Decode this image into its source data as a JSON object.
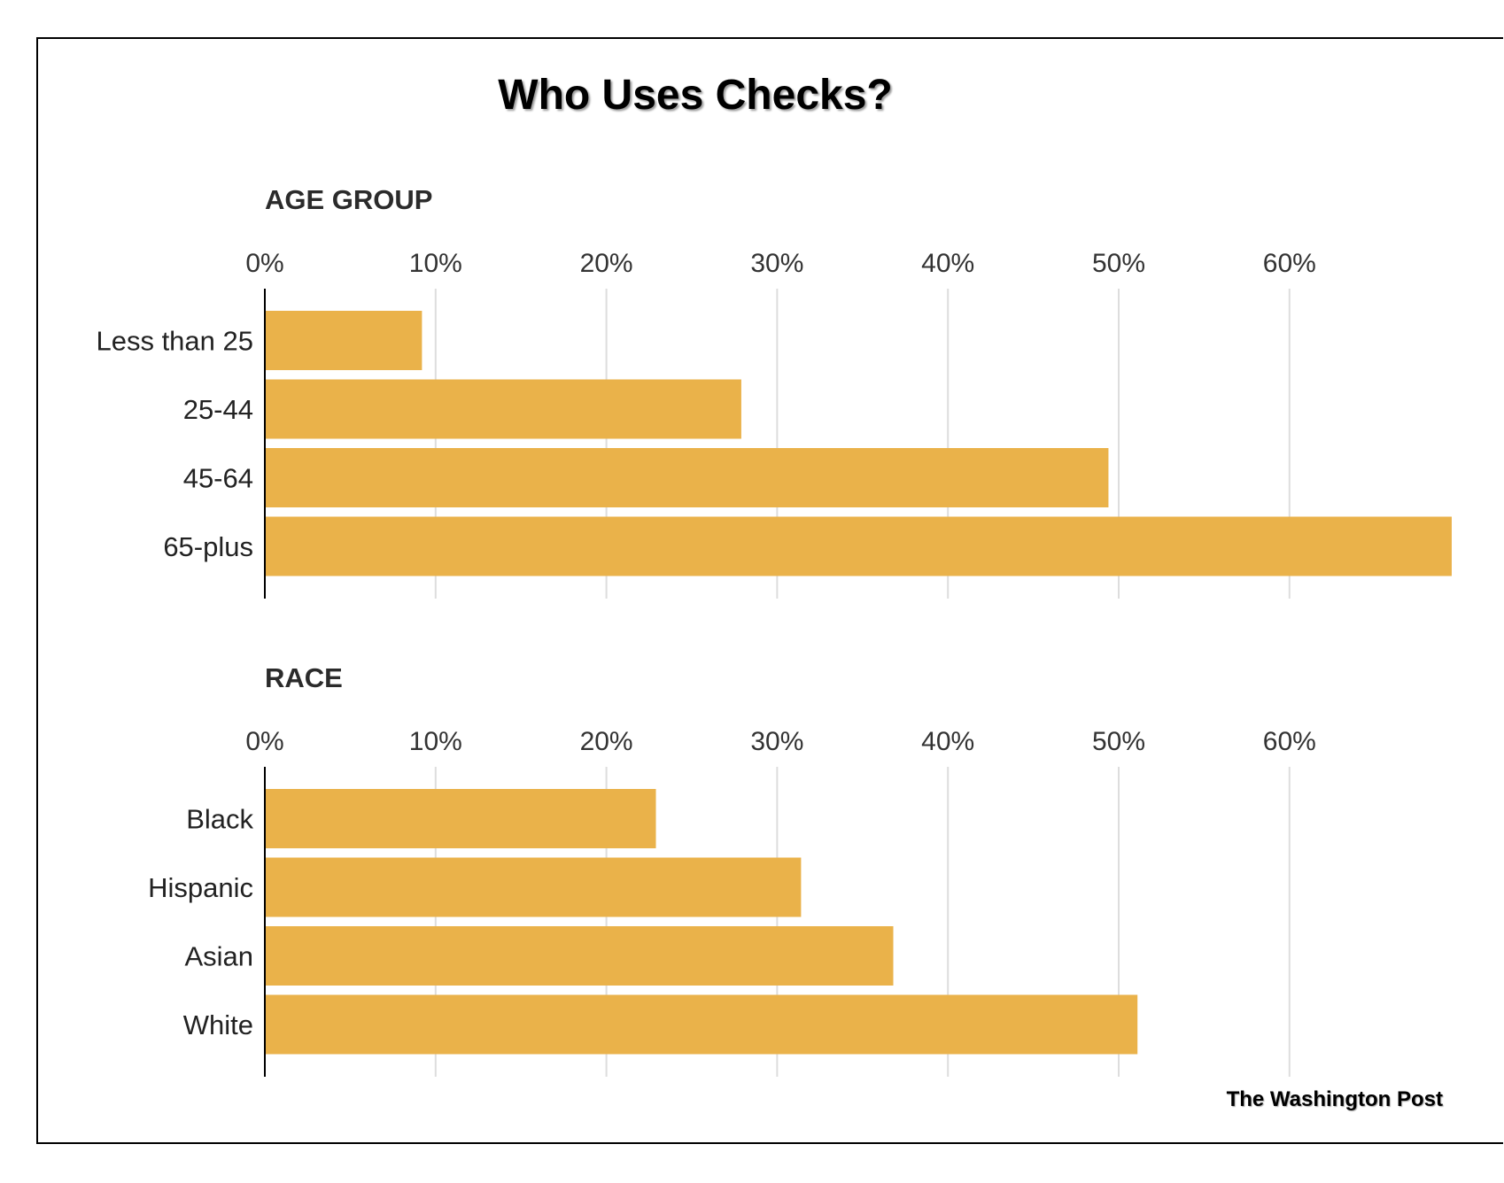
{
  "title": "Who Uses Checks?",
  "credit": "The Washington Post",
  "colors": {
    "bar": "#eab24a",
    "grid": "#dddddd",
    "axis": "#000000"
  },
  "chart_data": [
    {
      "type": "bar",
      "orientation": "horizontal",
      "title": "AGE GROUP",
      "categories": [
        "Less than 25",
        "25-44",
        "45-64",
        "65-plus"
      ],
      "values": [
        9.2,
        27.9,
        49.4,
        69.5
      ],
      "xlim": [
        0,
        70
      ],
      "ticks": [
        0,
        10,
        20,
        30,
        40,
        50,
        60
      ],
      "tick_labels": [
        "0%",
        "10%",
        "20%",
        "30%",
        "40%",
        "50%",
        "60%"
      ],
      "grid": true
    },
    {
      "type": "bar",
      "orientation": "horizontal",
      "title": "RACE",
      "categories": [
        "Black",
        "Hispanic",
        "Asian",
        "White"
      ],
      "values": [
        22.9,
        31.4,
        36.8,
        51.1
      ],
      "xlim": [
        0,
        70
      ],
      "ticks": [
        0,
        10,
        20,
        30,
        40,
        50,
        60
      ],
      "tick_labels": [
        "0%",
        "10%",
        "20%",
        "30%",
        "40%",
        "50%",
        "60%"
      ],
      "grid": true
    }
  ]
}
